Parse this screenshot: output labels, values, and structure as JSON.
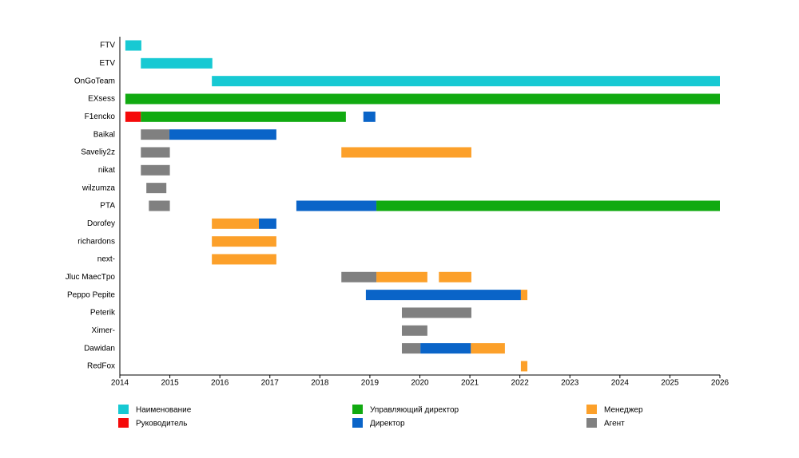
{
  "chart_data": {
    "type": "gantt",
    "categories": [
      "FTV",
      "ETV",
      "OnGoTeam",
      "EXsess",
      "F1encko",
      "Baikal",
      "Saveliy2z",
      "nikat",
      "wilzumza",
      "PTA",
      "Dorofey",
      "richardons",
      "next-",
      "Jluc MaecTpo",
      "Peppo Pepite",
      "Peterik",
      "Ximer-",
      "Dawidan",
      "RedFox"
    ],
    "xlim": [
      2014,
      2026
    ],
    "xticks": [
      2014,
      2015,
      2016,
      2017,
      2018,
      2019,
      2020,
      2021,
      2022,
      2023,
      2024,
      2025,
      2026
    ],
    "series": [
      {
        "name": "Наименование",
        "color": "#17c9d3",
        "bars": [
          {
            "category": 0,
            "start": 2014.11,
            "end": 2014.43
          },
          {
            "category": 1,
            "start": 2014.42,
            "end": 2015.85
          },
          {
            "category": 2,
            "start": 2015.84,
            "end": 2026
          }
        ]
      },
      {
        "name": "Руководитель",
        "color": "#f50a0a",
        "bars": [
          {
            "category": 4,
            "start": 2014.11,
            "end": 2014.42
          }
        ]
      },
      {
        "name": "Управляющий директор",
        "color": "#11aa11",
        "bars": [
          {
            "category": 3,
            "start": 2014.11,
            "end": 2026
          },
          {
            "category": 4,
            "start": 2014.42,
            "end": 2018.52
          },
          {
            "category": 9,
            "start": 2019.13,
            "end": 2026
          }
        ]
      },
      {
        "name": "Директор",
        "color": "#0a64c8",
        "bars": [
          {
            "category": 4,
            "start": 2018.87,
            "end": 2019.11
          },
          {
            "category": 5,
            "start": 2014.99,
            "end": 2017.13
          },
          {
            "category": 9,
            "start": 2017.53,
            "end": 2019.13
          },
          {
            "category": 10,
            "start": 2016.78,
            "end": 2017.13
          },
          {
            "category": 14,
            "start": 2018.92,
            "end": 2022.02
          },
          {
            "category": 17,
            "start": 2020.01,
            "end": 2021.02
          }
        ]
      },
      {
        "name": "Менеджер",
        "color": "#fca02a",
        "bars": [
          {
            "category": 6,
            "start": 2018.43,
            "end": 2021.03
          },
          {
            "category": 10,
            "start": 2015.84,
            "end": 2016.78
          },
          {
            "category": 11,
            "start": 2015.84,
            "end": 2017.13
          },
          {
            "category": 12,
            "start": 2015.84,
            "end": 2017.13
          },
          {
            "category": 13,
            "start": 2019.13,
            "end": 2020.15
          },
          {
            "category": 13,
            "start": 2020.38,
            "end": 2021.03
          },
          {
            "category": 14,
            "start": 2022.02,
            "end": 2022.15
          },
          {
            "category": 17,
            "start": 2021.02,
            "end": 2021.7
          },
          {
            "category": 18,
            "start": 2022.02,
            "end": 2022.15
          }
        ]
      },
      {
        "name": "Агент",
        "color": "#808080",
        "bars": [
          {
            "category": 5,
            "start": 2014.42,
            "end": 2014.99
          },
          {
            "category": 6,
            "start": 2014.42,
            "end": 2015.0
          },
          {
            "category": 7,
            "start": 2014.42,
            "end": 2015.0
          },
          {
            "category": 8,
            "start": 2014.53,
            "end": 2014.93
          },
          {
            "category": 9,
            "start": 2014.58,
            "end": 2015.0
          },
          {
            "category": 13,
            "start": 2018.43,
            "end": 2019.13
          },
          {
            "category": 15,
            "start": 2019.64,
            "end": 2021.03
          },
          {
            "category": 16,
            "start": 2019.64,
            "end": 2020.15
          },
          {
            "category": 17,
            "start": 2019.64,
            "end": 2020.01
          }
        ]
      }
    ]
  }
}
